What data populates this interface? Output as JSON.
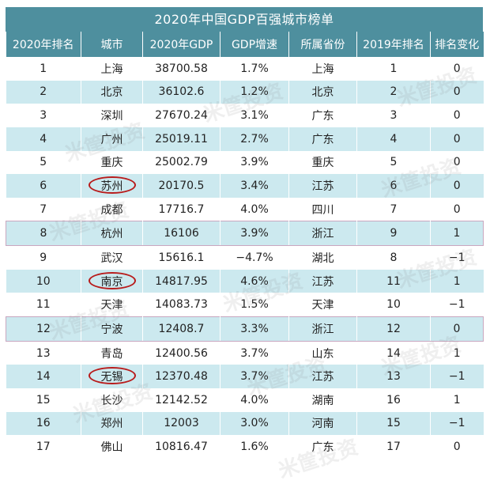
{
  "title": "2020年中国GDP百强城市榜单",
  "headers": [
    "2020年排名",
    "城市",
    "2020年GDP",
    "GDP增速",
    "所属省份",
    "2019年排名",
    "排名变化"
  ],
  "rows": [
    {
      "rank2020": "1",
      "city": "上海",
      "gdp": "38700.58",
      "growth": "1.7%",
      "province": "上海",
      "rank2019": "1",
      "change": "0"
    },
    {
      "rank2020": "2",
      "city": "北京",
      "gdp": "36102.6",
      "growth": "1.2%",
      "province": "北京",
      "rank2019": "2",
      "change": "0"
    },
    {
      "rank2020": "3",
      "city": "深圳",
      "gdp": "27670.24",
      "growth": "3.1%",
      "province": "广东",
      "rank2019": "3",
      "change": "0"
    },
    {
      "rank2020": "4",
      "city": "广州",
      "gdp": "25019.11",
      "growth": "2.7%",
      "province": "广东",
      "rank2019": "4",
      "change": "0"
    },
    {
      "rank2020": "5",
      "city": "重庆",
      "gdp": "25002.79",
      "growth": "3.9%",
      "province": "重庆",
      "rank2019": "5",
      "change": "0"
    },
    {
      "rank2020": "6",
      "city": "苏州",
      "gdp": "20170.5",
      "growth": "3.4%",
      "province": "江苏",
      "rank2019": "6",
      "change": "0"
    },
    {
      "rank2020": "7",
      "city": "成都",
      "gdp": "17716.7",
      "growth": "4.0%",
      "province": "四川",
      "rank2019": "7",
      "change": "0"
    },
    {
      "rank2020": "8",
      "city": "杭州",
      "gdp": "16106",
      "growth": "3.9%",
      "province": "浙江",
      "rank2019": "9",
      "change": "1"
    },
    {
      "rank2020": "9",
      "city": "武汉",
      "gdp": "15616.1",
      "growth": "-4.7%",
      "province": "湖北",
      "rank2019": "8",
      "change": "-1"
    },
    {
      "rank2020": "10",
      "city": "南京",
      "gdp": "14817.95",
      "growth": "4.6%",
      "province": "江苏",
      "rank2019": "11",
      "change": "1"
    },
    {
      "rank2020": "11",
      "city": "天津",
      "gdp": "14083.73",
      "growth": "1.5%",
      "province": "天津",
      "rank2019": "10",
      "change": "-1"
    },
    {
      "rank2020": "12",
      "city": "宁波",
      "gdp": "12408.7",
      "growth": "3.3%",
      "province": "浙江",
      "rank2019": "12",
      "change": "0"
    },
    {
      "rank2020": "13",
      "city": "青岛",
      "gdp": "12400.56",
      "growth": "3.7%",
      "province": "山东",
      "rank2019": "14",
      "change": "1"
    },
    {
      "rank2020": "14",
      "city": "无锡",
      "gdp": "12370.48",
      "growth": "3.7%",
      "province": "江苏",
      "rank2019": "13",
      "change": "-1"
    },
    {
      "rank2020": "15",
      "city": "长沙",
      "gdp": "12142.52",
      "growth": "4.0%",
      "province": "湖南",
      "rank2019": "16",
      "change": "1"
    },
    {
      "rank2020": "16",
      "city": "郑州",
      "gdp": "12003",
      "growth": "3.0%",
      "province": "河南",
      "rank2019": "15",
      "change": "-1"
    },
    {
      "rank2020": "17",
      "city": "佛山",
      "gdp": "10816.47",
      "growth": "1.6%",
      "province": "广东",
      "rank2019": "17",
      "change": "0"
    }
  ],
  "circled_cities": [
    "苏州",
    "南京",
    "无锡"
  ],
  "highlighted_ranks": [
    "8",
    "12"
  ],
  "watermark_text": "米筐投资",
  "colors": {
    "header_bg": "#4e8f9e",
    "alt_row": "#cce9ef",
    "plain_row": "#ffffff",
    "circle": "#b81c1c"
  }
}
